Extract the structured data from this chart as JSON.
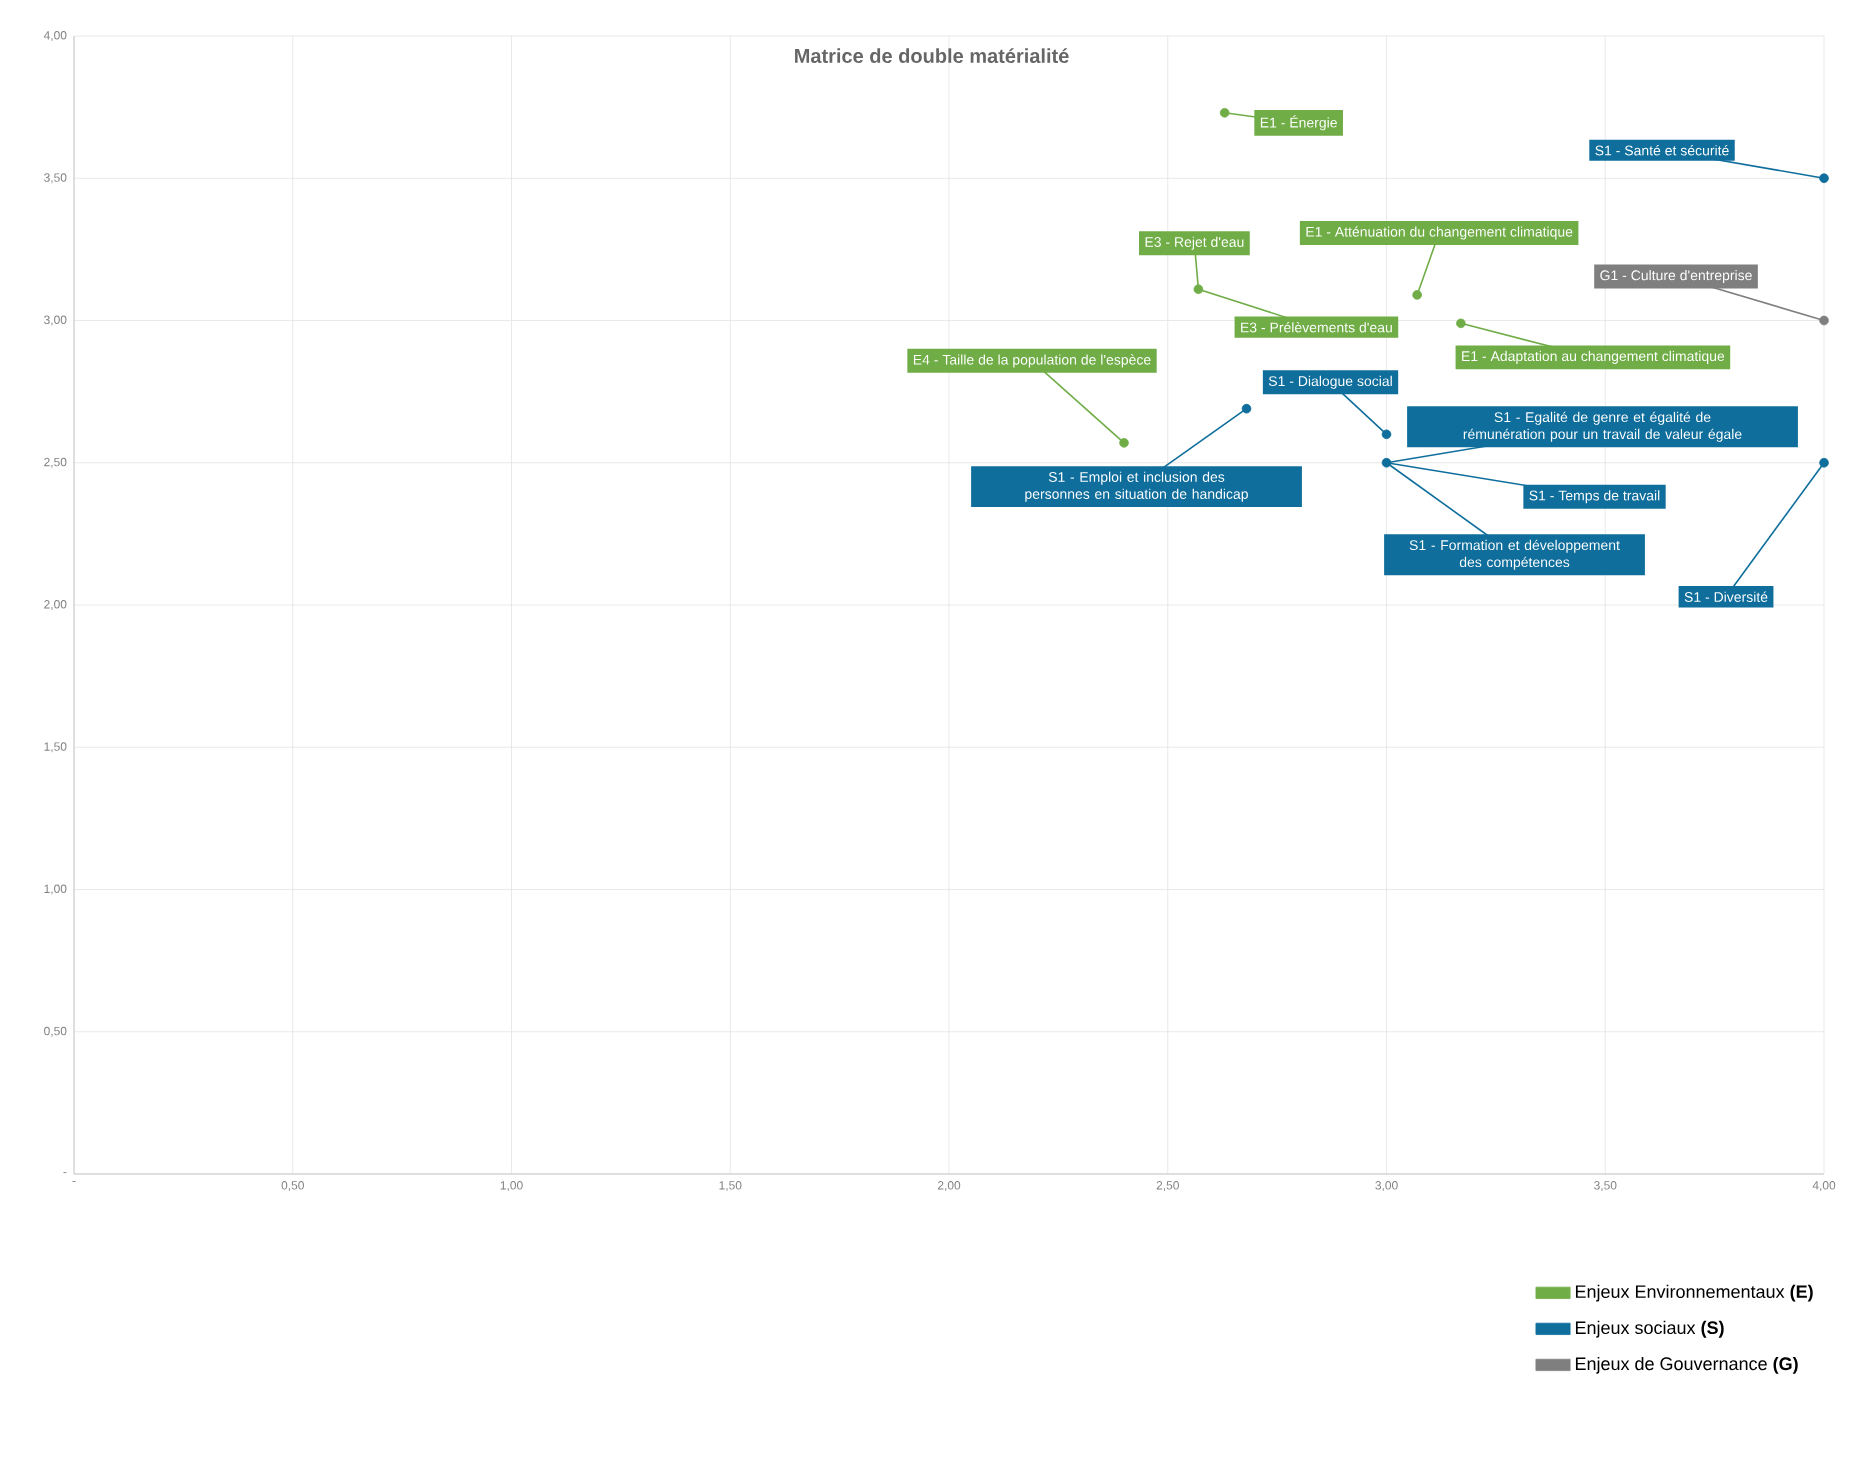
{
  "chart_data": {
    "type": "scatter",
    "title": "Matrice de double matérialité",
    "xlim": [
      0,
      4
    ],
    "ylim": [
      0,
      4
    ],
    "xticks": [
      {
        "value": 0,
        "label": "-"
      },
      {
        "value": 0.5,
        "label": "0,50"
      },
      {
        "value": 1,
        "label": "1,00"
      },
      {
        "value": 1.5,
        "label": "1,50"
      },
      {
        "value": 2,
        "label": "2,00"
      },
      {
        "value": 2.5,
        "label": "2,50"
      },
      {
        "value": 3,
        "label": "3,00"
      },
      {
        "value": 3.5,
        "label": "3,50"
      },
      {
        "value": 4,
        "label": "4,00"
      }
    ],
    "yticks": [
      {
        "value": 0,
        "label": "-"
      },
      {
        "value": 0.5,
        "label": "0,50"
      },
      {
        "value": 1,
        "label": "1,00"
      },
      {
        "value": 1.5,
        "label": "1,50"
      },
      {
        "value": 2,
        "label": "2,00"
      },
      {
        "value": 2.5,
        "label": "2,50"
      },
      {
        "value": 3,
        "label": "3,00"
      },
      {
        "value": 3.5,
        "label": "3,50"
      },
      {
        "value": 4,
        "label": "4,00"
      }
    ],
    "grid": true,
    "marker": "circle",
    "legend": "bottom right",
    "series": [
      {
        "name": "Enjeux Environnementaux **(E)**",
        "color": "#70ad47",
        "x": [
          2.63,
          2.57,
          3.07,
          3.17,
          2.4
        ],
        "values": [
          3.73,
          3.11,
          3.09,
          2.99,
          2.57
        ]
      },
      {
        "name": "Enjeux sociaux **(S)**",
        "color": "#0f6e9c",
        "x": [
          4,
          2.68,
          3,
          3,
          4
        ],
        "values": [
          3.5,
          2.69,
          2.6,
          2.5,
          2.5
        ]
      },
      {
        "name": "Enjeux de Gouvernance **(G)**",
        "color": "#7f7f7f",
        "x": [
          4
        ],
        "values": [
          3
        ]
      }
    ],
    "annotations": [
      {
        "text": "E1 - Énergie",
        "x": 2.63,
        "y": 3.73
      },
      {
        "text": "E3 - Rejet d'eau",
        "x": 2.57,
        "y": 3.11
      },
      {
        "text": "E3 - Prélèvements d'eau",
        "x": 2.57,
        "y": 3.11
      },
      {
        "text": "E1 - Atténuation du changement climatique",
        "x": 3.07,
        "y": 3.09
      },
      {
        "text": "E1 - Adaptation au changement climatique",
        "x": 3.17,
        "y": 2.99
      },
      {
        "text": "E4 - Taille de la population de l'espèce",
        "x": 2.4,
        "y": 2.57
      },
      {
        "text": "S1 - Santé et sécurité",
        "x": 4,
        "y": 3.5
      },
      {
        "text": "S1 - Emploi et inclusion des personnes en situation de handicap",
        "x": 2.68,
        "y": 2.69
      },
      {
        "text": "S1 - Dialogue social",
        "x": 3,
        "y": 2.6
      },
      {
        "text": "S1 - Egalité de genre et égalité de rémunération pour un travail de valeur égale",
        "x": 3,
        "y": 2.5
      },
      {
        "text": "S1 - Temps de travail",
        "x": 3,
        "y": 2.5
      },
      {
        "text": "S1 - Formation et développement des compétences",
        "x": 3,
        "y": 2.5
      },
      {
        "text": "S1 - Diversité",
        "x": 4,
        "y": 2.5
      },
      {
        "text": "G1 - Culture d'entreprise",
        "x": 4,
        "y": 3
      }
    ]
  }
}
